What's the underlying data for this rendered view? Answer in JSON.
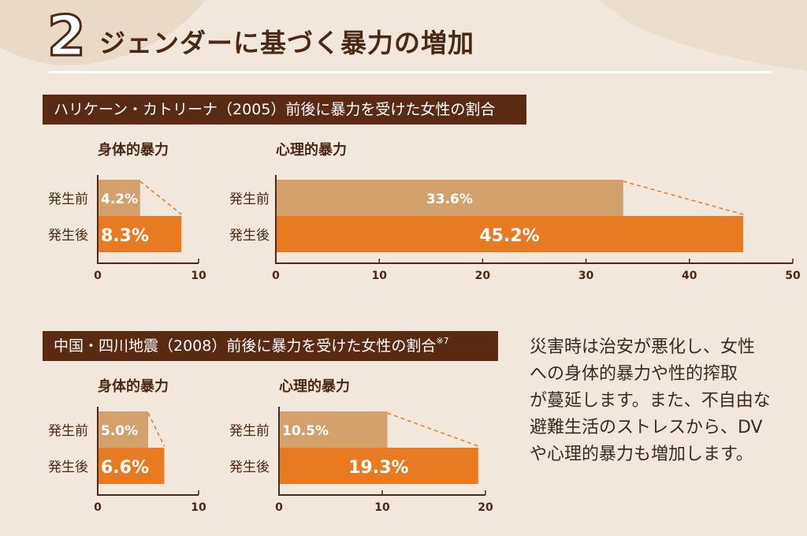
{
  "heading": {
    "number": "2",
    "title": "ジェンダーに基づく暴力の増加"
  },
  "sections": [
    {
      "label": "ハリケーン・カトリーナ（2005）前後に暴力を受けた女性の割合",
      "note": ""
    },
    {
      "label": "中国・四川地震（2008）前後に暴力を受けた女性の割合",
      "note": "※7"
    }
  ],
  "side_text": "災害時は治安が悪化し、女性\nへの身体的暴力や性的搾取\nが蔓延します。また、不自由な\n避難生活のストレスから、DV\nや心理的暴力も増加します。",
  "colors": {
    "before": "#d4a06c",
    "after": "#e87a22",
    "dark": "#5a2a12",
    "axis": "#4a2a14"
  },
  "chart_data": [
    {
      "type": "bar",
      "orientation": "horizontal",
      "title": "身体的暴力",
      "categories": [
        "発生前",
        "発生後"
      ],
      "values": [
        4.2,
        8.3
      ],
      "labels": [
        "4.2%",
        "8.3%"
      ],
      "xlim": [
        0,
        10
      ],
      "ticks": [
        0,
        10
      ]
    },
    {
      "type": "bar",
      "orientation": "horizontal",
      "title": "心理的暴力",
      "categories": [
        "発生前",
        "発生後"
      ],
      "values": [
        33.6,
        45.2
      ],
      "labels": [
        "33.6%",
        "45.2%"
      ],
      "xlim": [
        0,
        50
      ],
      "ticks": [
        0,
        10,
        20,
        30,
        40,
        50
      ]
    },
    {
      "type": "bar",
      "orientation": "horizontal",
      "title": "身体的暴力",
      "categories": [
        "発生前",
        "発生後"
      ],
      "values": [
        5.0,
        6.6
      ],
      "labels": [
        "5.0%",
        "6.6%"
      ],
      "xlim": [
        0,
        10
      ],
      "ticks": [
        0,
        10
      ]
    },
    {
      "type": "bar",
      "orientation": "horizontal",
      "title": "心理的暴力",
      "categories": [
        "発生前",
        "発生後"
      ],
      "values": [
        10.5,
        19.3
      ],
      "labels": [
        "10.5%",
        "19.3%"
      ],
      "xlim": [
        0,
        20
      ],
      "ticks": [
        0,
        10,
        20
      ]
    }
  ]
}
